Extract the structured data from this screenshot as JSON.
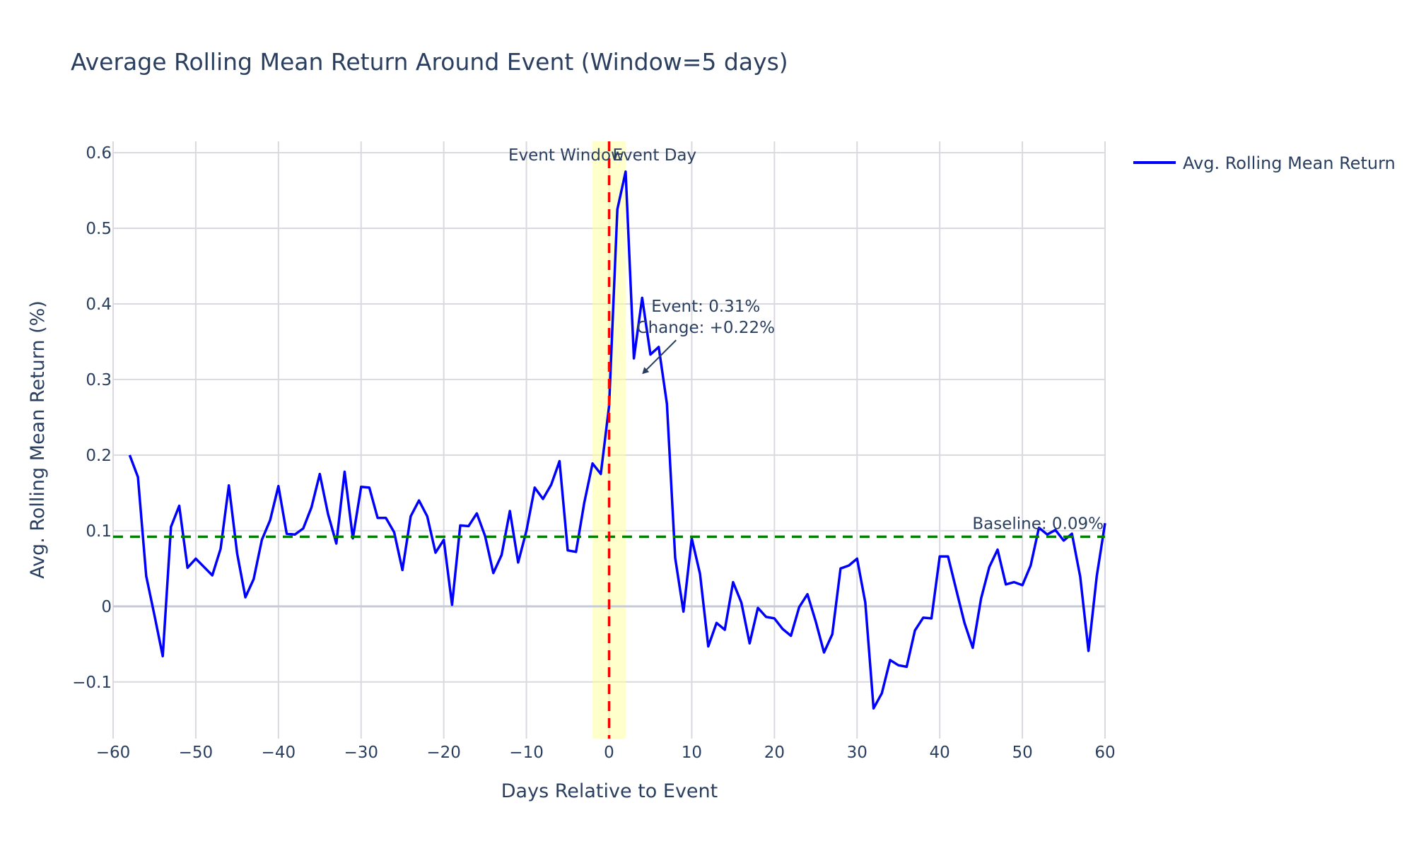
{
  "chart_data": {
    "type": "line",
    "title": "Average Rolling Mean Return Around Event (Window=5 days)",
    "xlabel": "Days Relative to Event",
    "ylabel": "Avg. Rolling Mean Return (%)",
    "xlim": [
      -60,
      60
    ],
    "ylim": [
      -0.175,
      0.615
    ],
    "x_ticks": [
      -60,
      -50,
      -40,
      -30,
      -20,
      -10,
      0,
      10,
      20,
      30,
      40,
      50,
      60
    ],
    "x_tick_labels": [
      "−60",
      "−50",
      "−40",
      "−30",
      "−20",
      "−10",
      "0",
      "10",
      "20",
      "30",
      "40",
      "50",
      "60"
    ],
    "y_ticks": [
      -0.1,
      0,
      0.1,
      0.2,
      0.3,
      0.4,
      0.5,
      0.6
    ],
    "y_tick_labels": [
      "−0.1",
      "0",
      "0.1",
      "0.2",
      "0.3",
      "0.4",
      "0.5",
      "0.6"
    ],
    "grid": true,
    "legend_position": "top-right",
    "series": [
      {
        "name": "Avg. Rolling Mean Return",
        "color": "#0000ff",
        "x": [
          -58,
          -57,
          -56,
          -55,
          -54,
          -53,
          -52,
          -51,
          -50,
          -49,
          -48,
          -47,
          -46,
          -45,
          -44,
          -43,
          -42,
          -41,
          -40,
          -39,
          -38,
          -37,
          -36,
          -35,
          -34,
          -33,
          -32,
          -31,
          -30,
          -29,
          -28,
          -27,
          -26,
          -25,
          -24,
          -23,
          -22,
          -21,
          -20,
          -19,
          -18,
          -17,
          -16,
          -15,
          -14,
          -13,
          -12,
          -11,
          -10,
          -9,
          -8,
          -7,
          -6,
          -5,
          -4,
          -3,
          -2,
          -1,
          0,
          1,
          2,
          3,
          4,
          5,
          6,
          7,
          8,
          9,
          10,
          11,
          12,
          13,
          14,
          15,
          16,
          17,
          18,
          19,
          20,
          21,
          22,
          23,
          24,
          25,
          26,
          27,
          28,
          29,
          30,
          31,
          32,
          33,
          34,
          35,
          36,
          37,
          38,
          39,
          40,
          41,
          42,
          43,
          44,
          45,
          46,
          47,
          48,
          49,
          50,
          51,
          52,
          53,
          54,
          55,
          56,
          57,
          58,
          59,
          60
        ],
        "y": [
          0.2,
          0.171,
          0.04,
          -0.012,
          -0.066,
          0.105,
          0.133,
          0.051,
          0.063,
          0.052,
          0.041,
          0.076,
          0.16,
          0.07,
          0.012,
          0.036,
          0.088,
          0.114,
          0.159,
          0.096,
          0.095,
          0.103,
          0.131,
          0.175,
          0.122,
          0.083,
          0.178,
          0.09,
          0.158,
          0.157,
          0.117,
          0.117,
          0.098,
          0.048,
          0.119,
          0.14,
          0.119,
          0.071,
          0.088,
          0.002,
          0.107,
          0.106,
          0.123,
          0.093,
          0.044,
          0.068,
          0.126,
          0.058,
          0.1,
          0.157,
          0.142,
          0.161,
          0.192,
          0.074,
          0.072,
          0.137,
          0.189,
          0.175,
          0.265,
          0.525,
          0.575,
          0.328,
          0.408,
          0.333,
          0.343,
          0.268,
          0.064,
          -0.007,
          0.09,
          0.043,
          -0.053,
          -0.022,
          -0.031,
          0.032,
          0.005,
          -0.049,
          -0.002,
          -0.014,
          -0.016,
          -0.03,
          -0.039,
          -0.001,
          0.016,
          -0.02,
          -0.061,
          -0.037,
          0.05,
          0.054,
          0.063,
          0.005,
          -0.135,
          -0.115,
          -0.071,
          -0.078,
          -0.08,
          -0.032,
          -0.015,
          -0.016,
          0.066,
          0.066,
          0.022,
          -0.022,
          -0.055,
          0.01,
          0.052,
          0.075,
          0.029,
          0.032,
          0.028,
          0.054,
          0.104,
          0.095,
          0.101,
          0.087,
          0.096,
          0.039,
          -0.059,
          0.04,
          0.11
        ]
      }
    ],
    "reference_lines": [
      {
        "orientation": "horizontal",
        "y": 0.092,
        "color": "#008000",
        "style": "dashed",
        "label": "Baseline: 0.09%"
      },
      {
        "orientation": "vertical",
        "x": 0,
        "color": "#ff0000",
        "style": "dashed",
        "label": "Event Day"
      }
    ],
    "shaded_region": {
      "x0": -2,
      "x1": 2,
      "color": "#ffff99",
      "label": "Event Window"
    },
    "annotations": [
      {
        "x": 4,
        "y": 0.31,
        "text_lines": [
          "Event: 0.31%",
          "Change: +0.22%"
        ]
      }
    ]
  }
}
